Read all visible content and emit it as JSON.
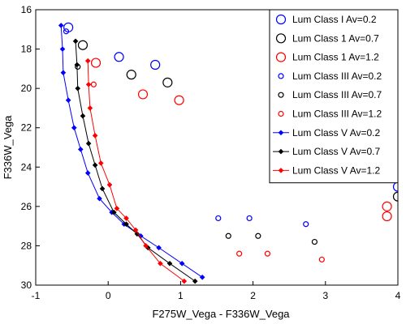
{
  "chart_data": {
    "type": "scatter",
    "xlabel": "F275W_Vega - F336W_Vega",
    "ylabel": "F336W_Vega",
    "xlim": [
      -1,
      4
    ],
    "ylim": [
      30,
      16
    ],
    "y_inverted": true,
    "x_ticks": [
      -1,
      0,
      1,
      2,
      3,
      4
    ],
    "y_ticks": [
      16,
      18,
      20,
      22,
      24,
      26,
      28,
      30
    ],
    "grid": false,
    "legend_position": "top-right",
    "series": [
      {
        "name": "Lum Class I Av=0.2",
        "color": "#0000ff",
        "style": "markers",
        "marker": "open-circle",
        "marker_size": "large",
        "points": [
          [
            -0.55,
            16.9
          ],
          [
            0.15,
            18.4
          ],
          [
            0.65,
            18.8
          ],
          [
            4.0,
            25.0
          ]
        ]
      },
      {
        "name": "Lum Class 1 Av=0.7",
        "color": "#000000",
        "style": "markers",
        "marker": "open-circle",
        "marker_size": "large",
        "points": [
          [
            -0.35,
            17.8
          ],
          [
            0.32,
            19.3
          ],
          [
            0.82,
            19.7
          ],
          [
            4.0,
            25.5
          ]
        ]
      },
      {
        "name": "Lum Class 1 Av=1.2",
        "color": "#ff0000",
        "style": "markers",
        "marker": "open-circle",
        "marker_size": "large",
        "points": [
          [
            -0.17,
            18.7
          ],
          [
            0.48,
            20.3
          ],
          [
            0.98,
            20.6
          ],
          [
            3.85,
            26.0
          ],
          [
            3.85,
            26.5
          ]
        ]
      },
      {
        "name": "Lum Class III Av=0.2",
        "color": "#0000ff",
        "style": "markers",
        "marker": "open-circle",
        "marker_size": "small",
        "points": [
          [
            -0.58,
            17.1
          ],
          [
            1.52,
            26.6
          ],
          [
            1.95,
            26.6
          ],
          [
            2.73,
            26.9
          ]
        ]
      },
      {
        "name": "Lum Class III Av=0.7",
        "color": "#000000",
        "style": "markers",
        "marker": "open-circle",
        "marker_size": "small",
        "points": [
          [
            -0.42,
            18.9
          ],
          [
            1.66,
            27.5
          ],
          [
            2.07,
            27.5
          ],
          [
            2.85,
            27.8
          ]
        ]
      },
      {
        "name": "Lum Class III Av=1.2",
        "color": "#ff0000",
        "style": "markers",
        "marker": "open-circle",
        "marker_size": "small",
        "points": [
          [
            -0.2,
            19.8
          ],
          [
            1.81,
            28.4
          ],
          [
            2.2,
            28.4
          ],
          [
            2.95,
            28.7
          ]
        ]
      },
      {
        "name": "Lum Class V Av=0.2",
        "color": "#0000ff",
        "style": "line+markers",
        "marker": "filled-diamond",
        "points": [
          [
            -0.65,
            16.8
          ],
          [
            -0.63,
            18.0
          ],
          [
            -0.62,
            19.2
          ],
          [
            -0.55,
            20.6
          ],
          [
            -0.47,
            22.0
          ],
          [
            -0.38,
            23.1
          ],
          [
            -0.28,
            24.3
          ],
          [
            -0.12,
            25.6
          ],
          [
            0.05,
            26.3
          ],
          [
            0.22,
            26.9
          ],
          [
            0.45,
            27.5
          ],
          [
            0.7,
            28.1
          ],
          [
            1.02,
            28.9
          ],
          [
            1.3,
            29.6
          ]
        ]
      },
      {
        "name": "Lum Class V Av=0.7",
        "color": "#000000",
        "style": "line+markers",
        "marker": "filled-diamond",
        "points": [
          [
            -0.45,
            17.6
          ],
          [
            -0.43,
            18.8
          ],
          [
            -0.42,
            20.0
          ],
          [
            -0.35,
            21.4
          ],
          [
            -0.27,
            22.8
          ],
          [
            -0.18,
            23.9
          ],
          [
            -0.08,
            25.1
          ],
          [
            0.08,
            26.3
          ],
          [
            0.25,
            26.9
          ],
          [
            0.4,
            27.4
          ],
          [
            0.55,
            28.1
          ],
          [
            0.85,
            28.9
          ],
          [
            1.2,
            29.8
          ]
        ]
      },
      {
        "name": "Lum Class V Av=1.2",
        "color": "#ff0000",
        "style": "line+markers",
        "marker": "filled-diamond",
        "points": [
          [
            -0.28,
            18.6
          ],
          [
            -0.27,
            19.8
          ],
          [
            -0.25,
            21.0
          ],
          [
            -0.18,
            22.4
          ],
          [
            -0.1,
            23.8
          ],
          [
            0.02,
            24.9
          ],
          [
            0.12,
            26.1
          ],
          [
            0.25,
            26.6
          ],
          [
            0.38,
            27.2
          ],
          [
            0.52,
            28.0
          ],
          [
            0.72,
            28.9
          ],
          [
            1.05,
            29.8
          ]
        ]
      }
    ]
  }
}
